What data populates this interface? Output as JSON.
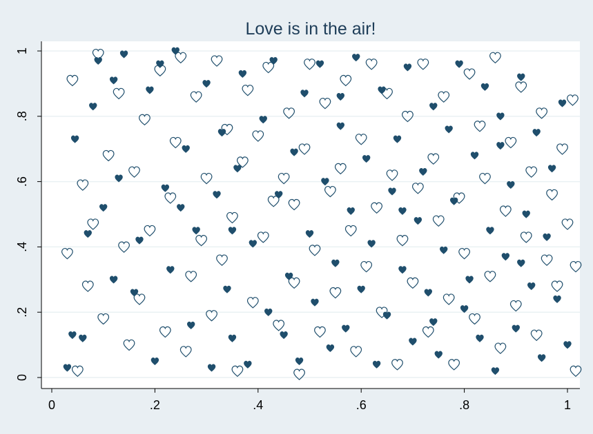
{
  "chart_data": {
    "type": "scatter",
    "title": "Love is in the air!",
    "xlabel": "",
    "ylabel": "",
    "xlim": [
      0,
      1
    ],
    "ylim": [
      0,
      1
    ],
    "x_ticks": [
      "0",
      ".2",
      ".4",
      ".6",
      ".8",
      "1"
    ],
    "y_ticks": [
      "0",
      ".2",
      ".4",
      ".6",
      ".8",
      "1"
    ],
    "grid": "horizontal",
    "legend": "none",
    "colors": {
      "background": "#e9eff3",
      "plot_background": "#ffffff",
      "gridline": "#eaf1f3",
      "marker": "#1f4e6c",
      "title": "#1e3d58"
    },
    "series": [
      {
        "marker": "solid-heart",
        "points": [
          [
            0.03,
            0.03
          ],
          [
            0.04,
            0.13
          ],
          [
            0.045,
            0.73
          ],
          [
            0.06,
            0.12
          ],
          [
            0.07,
            0.44
          ],
          [
            0.08,
            0.83
          ],
          [
            0.09,
            0.97
          ],
          [
            0.1,
            0.52
          ],
          [
            0.12,
            0.91
          ],
          [
            0.13,
            0.61
          ],
          [
            0.14,
            0.99
          ],
          [
            0.16,
            0.26
          ],
          [
            0.17,
            0.42
          ],
          [
            0.19,
            0.88
          ],
          [
            0.2,
            0.05
          ],
          [
            0.21,
            0.96
          ],
          [
            0.22,
            0.58
          ],
          [
            0.23,
            0.33
          ],
          [
            0.24,
            1.0
          ],
          [
            0.26,
            0.7
          ],
          [
            0.27,
            0.16
          ],
          [
            0.28,
            0.45
          ],
          [
            0.3,
            0.9
          ],
          [
            0.31,
            0.03
          ],
          [
            0.32,
            0.56
          ],
          [
            0.33,
            0.75
          ],
          [
            0.34,
            0.27
          ],
          [
            0.35,
            0.12
          ],
          [
            0.36,
            0.64
          ],
          [
            0.37,
            0.93
          ],
          [
            0.38,
            0.04
          ],
          [
            0.39,
            0.41
          ],
          [
            0.41,
            0.79
          ],
          [
            0.42,
            0.2
          ],
          [
            0.43,
            0.97
          ],
          [
            0.44,
            0.56
          ],
          [
            0.45,
            0.13
          ],
          [
            0.46,
            0.31
          ],
          [
            0.47,
            0.69
          ],
          [
            0.48,
            0.05
          ],
          [
            0.49,
            0.87
          ],
          [
            0.5,
            0.44
          ],
          [
            0.51,
            0.23
          ],
          [
            0.52,
            0.96
          ],
          [
            0.53,
            0.6
          ],
          [
            0.54,
            0.09
          ],
          [
            0.55,
            0.35
          ],
          [
            0.56,
            0.77
          ],
          [
            0.57,
            0.15
          ],
          [
            0.58,
            0.51
          ],
          [
            0.59,
            0.98
          ],
          [
            0.6,
            0.27
          ],
          [
            0.61,
            0.67
          ],
          [
            0.62,
            0.41
          ],
          [
            0.63,
            0.04
          ],
          [
            0.64,
            0.88
          ],
          [
            0.65,
            0.19
          ],
          [
            0.66,
            0.57
          ],
          [
            0.67,
            0.73
          ],
          [
            0.68,
            0.33
          ],
          [
            0.69,
            0.95
          ],
          [
            0.7,
            0.11
          ],
          [
            0.71,
            0.48
          ],
          [
            0.72,
            0.63
          ],
          [
            0.73,
            0.26
          ],
          [
            0.74,
            0.83
          ],
          [
            0.75,
            0.07
          ],
          [
            0.76,
            0.39
          ],
          [
            0.77,
            0.76
          ],
          [
            0.78,
            0.54
          ],
          [
            0.79,
            0.96
          ],
          [
            0.8,
            0.21
          ],
          [
            0.81,
            0.3
          ],
          [
            0.82,
            0.68
          ],
          [
            0.83,
            0.12
          ],
          [
            0.84,
            0.89
          ],
          [
            0.85,
            0.45
          ],
          [
            0.86,
            0.02
          ],
          [
            0.87,
            0.8
          ],
          [
            0.88,
            0.37
          ],
          [
            0.89,
            0.59
          ],
          [
            0.9,
            0.15
          ],
          [
            0.91,
            0.92
          ],
          [
            0.92,
            0.5
          ],
          [
            0.93,
            0.28
          ],
          [
            0.94,
            0.75
          ],
          [
            0.95,
            0.06
          ],
          [
            0.96,
            0.43
          ],
          [
            0.97,
            0.64
          ],
          [
            0.98,
            0.24
          ],
          [
            0.99,
            0.84
          ],
          [
            1.0,
            0.1
          ],
          [
            0.12,
            0.3
          ],
          [
            0.25,
            0.52
          ],
          [
            0.56,
            0.86
          ],
          [
            0.68,
            0.51
          ],
          [
            0.74,
            0.17
          ],
          [
            0.87,
            0.71
          ],
          [
            0.91,
            0.35
          ],
          [
            0.35,
            0.45
          ]
        ]
      },
      {
        "marker": "hollow-heart",
        "points": [
          [
            0.03,
            0.38
          ],
          [
            0.04,
            0.91
          ],
          [
            0.05,
            0.02
          ],
          [
            0.06,
            0.59
          ],
          [
            0.07,
            0.28
          ],
          [
            0.08,
            0.47
          ],
          [
            0.09,
            0.99
          ],
          [
            0.1,
            0.18
          ],
          [
            0.11,
            0.68
          ],
          [
            0.13,
            0.87
          ],
          [
            0.14,
            0.4
          ],
          [
            0.15,
            0.1
          ],
          [
            0.16,
            0.63
          ],
          [
            0.17,
            0.24
          ],
          [
            0.18,
            0.79
          ],
          [
            0.19,
            0.45
          ],
          [
            0.21,
            0.94
          ],
          [
            0.22,
            0.14
          ],
          [
            0.23,
            0.55
          ],
          [
            0.24,
            0.72
          ],
          [
            0.25,
            0.98
          ],
          [
            0.26,
            0.08
          ],
          [
            0.27,
            0.31
          ],
          [
            0.28,
            0.86
          ],
          [
            0.29,
            0.42
          ],
          [
            0.3,
            0.61
          ],
          [
            0.31,
            0.19
          ],
          [
            0.32,
            0.97
          ],
          [
            0.33,
            0.36
          ],
          [
            0.34,
            0.76
          ],
          [
            0.35,
            0.49
          ],
          [
            0.36,
            0.02
          ],
          [
            0.37,
            0.66
          ],
          [
            0.38,
            0.88
          ],
          [
            0.39,
            0.23
          ],
          [
            0.4,
            0.74
          ],
          [
            0.41,
            0.43
          ],
          [
            0.42,
            0.95
          ],
          [
            0.43,
            0.54
          ],
          [
            0.44,
            0.16
          ],
          [
            0.45,
            0.61
          ],
          [
            0.46,
            0.81
          ],
          [
            0.47,
            0.29
          ],
          [
            0.48,
            0.01
          ],
          [
            0.49,
            0.7
          ],
          [
            0.5,
            0.96
          ],
          [
            0.51,
            0.39
          ],
          [
            0.52,
            0.14
          ],
          [
            0.53,
            0.84
          ],
          [
            0.54,
            0.57
          ],
          [
            0.55,
            0.26
          ],
          [
            0.56,
            0.64
          ],
          [
            0.57,
            0.91
          ],
          [
            0.58,
            0.45
          ],
          [
            0.59,
            0.08
          ],
          [
            0.6,
            0.73
          ],
          [
            0.61,
            0.34
          ],
          [
            0.62,
            0.96
          ],
          [
            0.63,
            0.52
          ],
          [
            0.64,
            0.2
          ],
          [
            0.65,
            0.87
          ],
          [
            0.66,
            0.62
          ],
          [
            0.67,
            0.04
          ],
          [
            0.68,
            0.42
          ],
          [
            0.69,
            0.8
          ],
          [
            0.7,
            0.29
          ],
          [
            0.71,
            0.58
          ],
          [
            0.72,
            0.96
          ],
          [
            0.73,
            0.14
          ],
          [
            0.74,
            0.67
          ],
          [
            0.75,
            0.48
          ],
          [
            0.76,
            0.86
          ],
          [
            0.77,
            0.24
          ],
          [
            0.78,
            0.04
          ],
          [
            0.79,
            0.55
          ],
          [
            0.8,
            0.38
          ],
          [
            0.81,
            0.93
          ],
          [
            0.82,
            0.18
          ],
          [
            0.83,
            0.77
          ],
          [
            0.84,
            0.61
          ],
          [
            0.85,
            0.31
          ],
          [
            0.86,
            0.98
          ],
          [
            0.87,
            0.09
          ],
          [
            0.88,
            0.51
          ],
          [
            0.89,
            0.72
          ],
          [
            0.9,
            0.22
          ],
          [
            0.91,
            0.89
          ],
          [
            0.92,
            0.43
          ],
          [
            0.93,
            0.63
          ],
          [
            0.94,
            0.13
          ],
          [
            0.95,
            0.81
          ],
          [
            0.96,
            0.36
          ],
          [
            0.97,
            0.56
          ],
          [
            0.98,
            0.28
          ],
          [
            0.99,
            0.7
          ],
          [
            1.0,
            0.47
          ],
          [
            1.01,
            0.85
          ],
          [
            1.02,
            0.02
          ],
          [
            1.02,
            0.34
          ],
          [
            0.47,
            0.53
          ]
        ]
      }
    ]
  }
}
